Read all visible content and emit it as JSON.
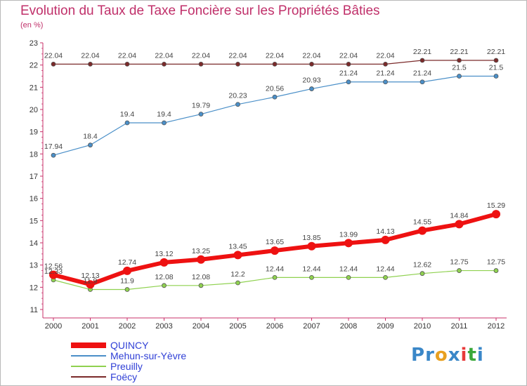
{
  "title": "Evolution du Taux de Taxe Foncière sur les Propriétés Bâties",
  "unit": "(en %)",
  "brand": [
    "P",
    "r",
    "o",
    "x",
    "i",
    "t",
    "i"
  ],
  "colors": {
    "title": "#c0306a",
    "legend_text": "#2f3fd6",
    "brand": [
      "#3a87c8",
      "#3a87c8",
      "#e8a020",
      "#3a87c8",
      "#e83a3a",
      "#3aa83a",
      "#3a87c8"
    ]
  },
  "chart_data": {
    "type": "line",
    "x": [
      "2000",
      "2001",
      "2002",
      "2003",
      "2004",
      "2005",
      "2006",
      "2007",
      "2008",
      "2009",
      "2010",
      "2011",
      "2012"
    ],
    "ylim": [
      11,
      23
    ],
    "yticks": [
      11,
      12,
      13,
      14,
      15,
      16,
      17,
      18,
      19,
      20,
      21,
      22,
      23
    ],
    "grid": false,
    "legend_position": "bottom-left",
    "series": [
      {
        "name": "Foëcy",
        "color": "#7b2a2a",
        "width": 1.2,
        "marker": 3,
        "values": [
          22.04,
          22.04,
          22.04,
          22.04,
          22.04,
          22.04,
          22.04,
          22.04,
          22.04,
          22.04,
          22.21,
          22.21,
          22.21
        ],
        "labels": [
          "22.04",
          "22.04",
          "22.04",
          "22.04",
          "22.04",
          "22.04",
          "22.04",
          "22.04",
          "22.04",
          "22.04",
          "22.21",
          "22.21",
          "22.21"
        ]
      },
      {
        "name": "Mehun-sur-Yèvre",
        "color": "#4a8fc8",
        "width": 1.2,
        "marker": 3,
        "values": [
          17.94,
          18.4,
          19.4,
          19.4,
          19.79,
          20.23,
          20.56,
          20.93,
          21.24,
          21.24,
          21.24,
          21.5,
          21.5
        ],
        "labels": [
          "17.94",
          "18.4",
          "19.4",
          "19.4",
          "19.79",
          "20.23",
          "20.56",
          "20.93",
          "21.24",
          "21.24",
          "21.24",
          "21.5",
          "21.5"
        ]
      },
      {
        "name": "Preuilly",
        "color": "#8fd14f",
        "width": 1.2,
        "marker": 3,
        "values": [
          12.33,
          11.9,
          11.9,
          12.08,
          12.08,
          12.2,
          12.44,
          12.44,
          12.44,
          12.44,
          12.62,
          12.75,
          12.75
        ],
        "labels": [
          "12.33",
          "11.9",
          "11.9",
          "12.08",
          "12.08",
          "12.2",
          "12.44",
          "12.44",
          "12.44",
          "12.44",
          "12.62",
          "12.75",
          "12.75"
        ]
      },
      {
        "name": "QUINCY",
        "color": "#ee1111",
        "width": 6,
        "marker": 6,
        "values": [
          12.56,
          12.13,
          12.74,
          13.12,
          13.25,
          13.45,
          13.65,
          13.85,
          13.99,
          14.13,
          14.55,
          14.84,
          15.29
        ],
        "labels": [
          "12.56",
          "12.13",
          "12.74",
          "13.12",
          "13.25",
          "13.45",
          "13.65",
          "13.85",
          "13.99",
          "14.13",
          "14.55",
          "14.84",
          "15.29"
        ]
      }
    ],
    "legend": [
      "QUINCY",
      "Mehun-sur-Yèvre",
      "Preuilly",
      "Foëcy"
    ]
  }
}
